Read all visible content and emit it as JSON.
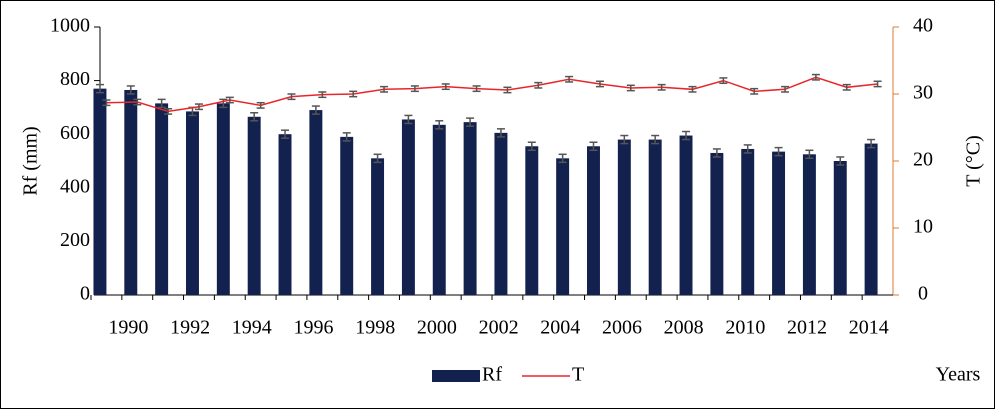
{
  "chart_data": {
    "type": "bar_line",
    "categories": [
      "1990",
      null,
      "1992",
      null,
      "1994",
      null,
      "1996",
      null,
      "1998",
      null,
      "2000",
      null,
      "2002",
      null,
      "2004",
      null,
      "2006",
      null,
      "2008",
      null,
      "2010",
      null,
      "2012",
      null,
      "2014",
      null
    ],
    "x_label": "Years",
    "y_label": "Rf (mm)",
    "y2_label": "T (°C)",
    "ylim": [
      0,
      1000
    ],
    "yticks": [
      0,
      200,
      400,
      600,
      800,
      1000
    ],
    "y2lim": [
      0,
      40
    ],
    "y2ticks": [
      0,
      10,
      20,
      30,
      40
    ],
    "legend": "bottom",
    "series": [
      {
        "name": "Rf",
        "type": "bar",
        "color": "#13214f",
        "values": [
          770,
          765,
          715,
          685,
          715,
          665,
          600,
          690,
          590,
          510,
          655,
          635,
          645,
          605,
          555,
          510,
          555,
          580,
          580,
          595,
          530,
          545,
          535,
          525,
          500,
          565
        ],
        "error": [
          15,
          15,
          15,
          15,
          15,
          15,
          15,
          15,
          15,
          15,
          15,
          15,
          15,
          15,
          15,
          15,
          15,
          15,
          15,
          15,
          15,
          15,
          15,
          15,
          15,
          15
        ]
      },
      {
        "name": "T",
        "type": "line",
        "axis": "y2",
        "color": "#e8262a",
        "values": [
          28.7,
          28.8,
          27.4,
          28.1,
          29.1,
          28.3,
          29.6,
          29.9,
          30.0,
          30.7,
          30.8,
          31.1,
          30.8,
          30.6,
          31.3,
          32.2,
          31.5,
          30.9,
          31.0,
          30.7,
          32.0,
          30.4,
          30.7,
          32.5,
          31.0,
          31.5
        ],
        "error": [
          0.4,
          0.4,
          0.4,
          0.4,
          0.4,
          0.4,
          0.4,
          0.4,
          0.4,
          0.4,
          0.4,
          0.4,
          0.4,
          0.4,
          0.4,
          0.4,
          0.4,
          0.4,
          0.4,
          0.4,
          0.4,
          0.4,
          0.4,
          0.4,
          0.4,
          0.4
        ]
      }
    ]
  }
}
